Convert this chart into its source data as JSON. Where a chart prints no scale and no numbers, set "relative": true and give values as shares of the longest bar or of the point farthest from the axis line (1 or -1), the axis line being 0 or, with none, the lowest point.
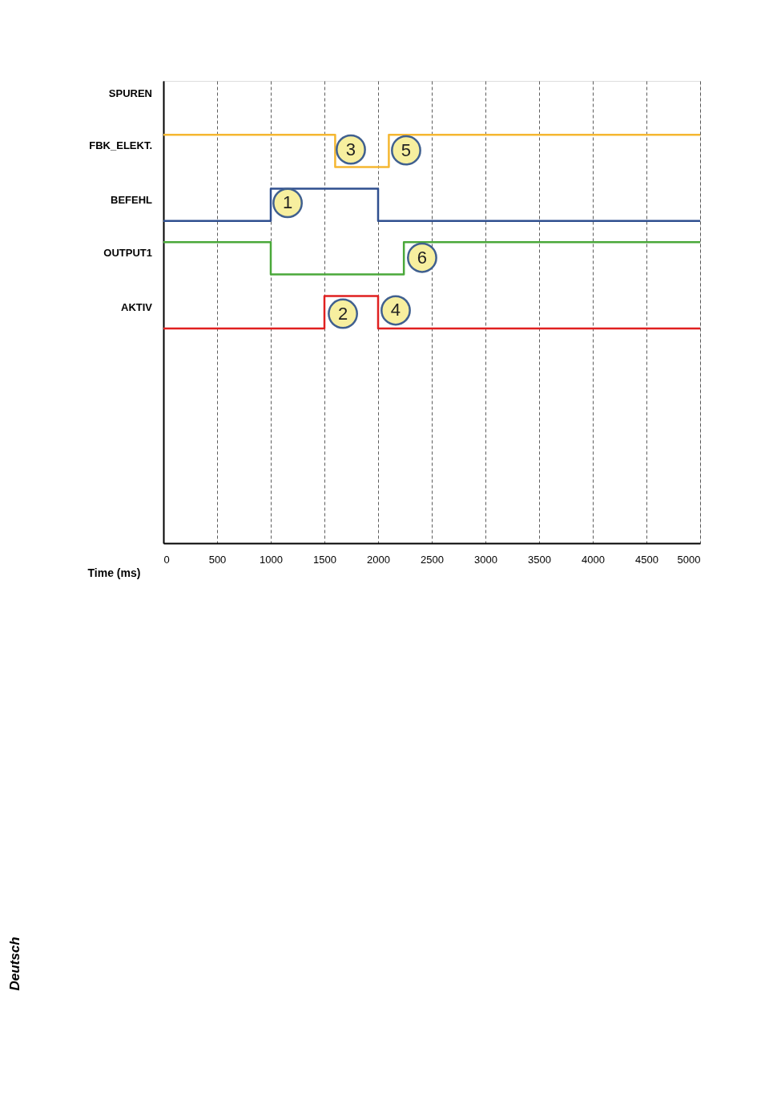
{
  "chart_data": {
    "type": "step",
    "relative": true,
    "xlabel": "Time (ms)",
    "ylabel": "SPUREN",
    "xlim": [
      0,
      5000
    ],
    "xticks": [
      0,
      500,
      1000,
      1500,
      2000,
      2500,
      3000,
      3500,
      4000,
      4500,
      5000
    ],
    "grid": "x",
    "line_style": "solid",
    "marker": "none",
    "series": [
      {
        "name": "FBK_ELEKT.",
        "color": "#f5b731",
        "x": [
          0,
          1600,
          2100,
          5000
        ],
        "values": [
          1.0,
          0.921,
          1.0,
          1.0
        ]
      },
      {
        "name": "BEFEHL",
        "color": "#2f4f8f",
        "x": [
          0,
          1000,
          2000,
          5000
        ],
        "values": [
          0.789,
          0.868,
          0.789,
          0.789
        ]
      },
      {
        "name": "OUTPUT1",
        "color": "#4aa83a",
        "x": [
          0,
          1000,
          2240,
          5000
        ],
        "values": [
          0.737,
          0.658,
          0.737,
          0.737
        ]
      },
      {
        "name": "AKTIV",
        "color": "#e02020",
        "x": [
          0,
          1500,
          2000,
          5000
        ],
        "values": [
          0.526,
          0.605,
          0.526,
          0.526
        ]
      }
    ],
    "annotations": [
      {
        "text": "1",
        "x": 1157,
        "y": 0.833
      },
      {
        "text": "2",
        "x": 1672,
        "y": 0.562
      },
      {
        "text": "3",
        "x": 1746,
        "y": 0.964
      },
      {
        "text": "4",
        "x": 2164,
        "y": 0.57
      },
      {
        "text": "5",
        "x": 2261,
        "y": 0.962
      },
      {
        "text": "6",
        "x": 2410,
        "y": 0.699
      },
      "Deutsch"
    ]
  }
}
